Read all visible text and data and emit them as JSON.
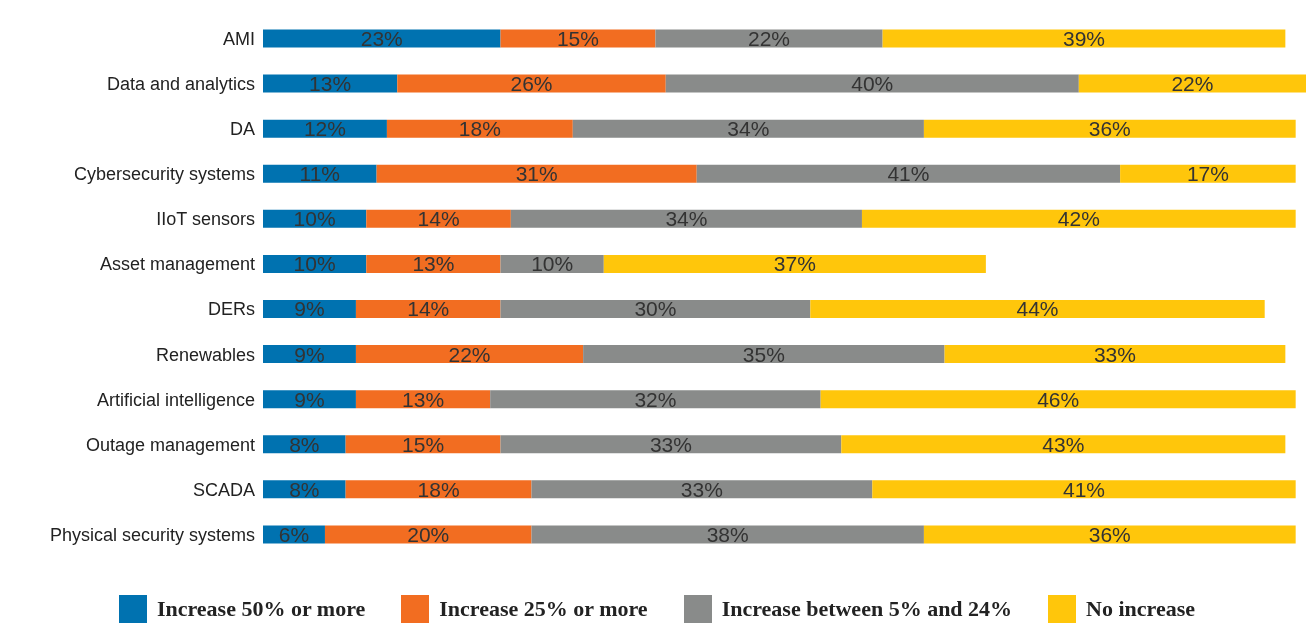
{
  "chart_data": {
    "type": "bar",
    "orientation": "horizontal",
    "stacked": true,
    "categories": [
      "AMI",
      "Data and analytics",
      "DA",
      "Cybersecurity systems",
      "IIoT sensors",
      "Asset management",
      "DERs",
      "Renewables",
      "Artificial intelligence",
      "Outage management",
      "SCADA",
      "Physical security systems"
    ],
    "series": [
      {
        "name": "Increase 50% or more",
        "color": "#0072b0",
        "values": [
          23,
          13,
          12,
          11,
          10,
          10,
          9,
          9,
          9,
          8,
          8,
          6
        ],
        "value_labels": [
          "23%",
          "13%",
          "12%",
          "11%",
          "10%",
          "10%",
          "9%",
          "9%",
          "9%",
          "8%",
          "8%",
          "6%"
        ]
      },
      {
        "name": "Increase 25% or more",
        "color": "#f26d21",
        "values": [
          15,
          26,
          18,
          31,
          14,
          13,
          14,
          22,
          13,
          15,
          18,
          20
        ],
        "value_labels": [
          "15%",
          "26%",
          "18%",
          "31%",
          "14%",
          "13%",
          "14%",
          "22%",
          "13%",
          "15%",
          "18%",
          "20%"
        ]
      },
      {
        "name": "Increase between 5% and 24%",
        "color": "#898b8a",
        "values": [
          22,
          40,
          34,
          41,
          34,
          10,
          30,
          35,
          32,
          33,
          33,
          38
        ],
        "value_labels": [
          "22%",
          "40%",
          "34%",
          "41%",
          "34%",
          "10%",
          "30%",
          "35%",
          "32%",
          "33%",
          "33%",
          "38%"
        ]
      },
      {
        "name": "No increase",
        "color": "#ffc60b",
        "values": [
          39,
          22,
          36,
          17,
          42,
          37,
          44,
          33,
          46,
          43,
          41,
          36
        ],
        "value_labels": [
          "39%",
          "22%",
          "36%",
          "17%",
          "42%",
          "37%",
          "44%",
          "33%",
          "46%",
          "43%",
          "41%",
          "36%"
        ]
      }
    ],
    "tick_labels": "y",
    "legend": "bottom"
  }
}
